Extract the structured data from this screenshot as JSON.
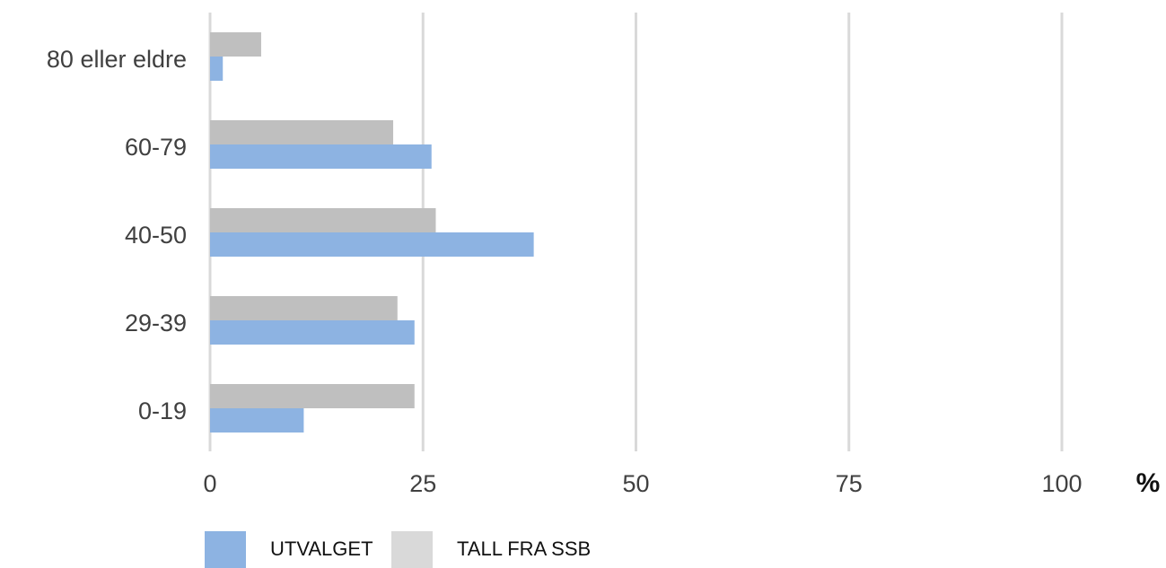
{
  "chart_data": {
    "type": "bar",
    "orientation": "horizontal",
    "categories": [
      "80 eller eldre",
      "60-79",
      "40-50",
      "29-39",
      "0-19"
    ],
    "series": [
      {
        "name": "UTVALGET",
        "values": [
          1.5,
          26,
          38,
          24,
          11
        ],
        "color": "#8db3e2"
      },
      {
        "name": "TALL FRA SSB",
        "values": [
          6,
          21.5,
          26.5,
          22,
          24
        ],
        "color": "#bfbfbf"
      }
    ],
    "legend_swatch_colors": [
      "#8db3e2",
      "#d9d9d9"
    ],
    "x_ticks": [
      0,
      25,
      50,
      75,
      100
    ],
    "xlim": [
      0,
      100
    ],
    "x_unit": "%",
    "gridlines": true,
    "legend_position": "bottom-left"
  }
}
